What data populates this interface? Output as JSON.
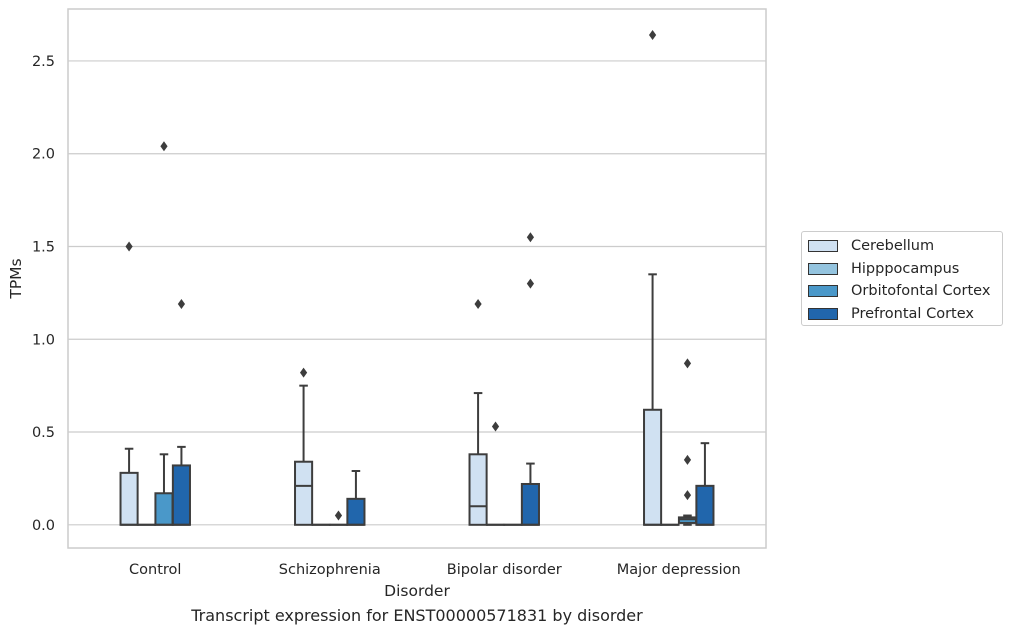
{
  "chart_data": {
    "type": "box",
    "title": "",
    "caption": "Transcript expression for ENST00000571831 by disorder",
    "xlabel": "Disorder",
    "ylabel": "TPMs",
    "categories": [
      "Control",
      "Schizophrenia",
      "Bipolar disorder",
      "Major depression"
    ],
    "ylim": [
      -0.125,
      2.78
    ],
    "yticks": [
      0.0,
      0.5,
      1.0,
      1.5,
      2.0,
      2.5
    ],
    "ytick_labels": [
      "0.0",
      "0.5",
      "1.0",
      "1.5",
      "2.0",
      "2.5"
    ],
    "grid": "horizontal",
    "legend_position": "right",
    "series": [
      {
        "name": "Cerebellum",
        "color": "#d0e1f2",
        "boxes": [
          {
            "q1": 0,
            "median": 0,
            "q3": 0.28,
            "whisker_low": 0,
            "whisker_high": 0.41,
            "outliers": [
              1.5
            ]
          },
          {
            "q1": 0,
            "median": 0.21,
            "q3": 0.34,
            "whisker_low": 0,
            "whisker_high": 0.75,
            "outliers": [
              0.82
            ]
          },
          {
            "q1": 0,
            "median": 0.1,
            "q3": 0.38,
            "whisker_low": 0,
            "whisker_high": 0.71,
            "outliers": [
              1.19
            ]
          },
          {
            "q1": 0,
            "median": 0,
            "q3": 0.62,
            "whisker_low": 0,
            "whisker_high": 1.35,
            "outliers": [
              2.64
            ]
          }
        ]
      },
      {
        "name": "Hipppocampus",
        "color": "#94c4df",
        "boxes": [
          {
            "q1": 0,
            "median": 0,
            "q3": 0,
            "whisker_low": 0,
            "whisker_high": 0,
            "outliers": []
          },
          {
            "q1": 0,
            "median": 0,
            "q3": 0,
            "whisker_low": 0,
            "whisker_high": 0,
            "outliers": []
          },
          {
            "q1": 0,
            "median": 0,
            "q3": 0,
            "whisker_low": 0,
            "whisker_high": 0,
            "outliers": [
              0.53
            ]
          },
          {
            "q1": 0,
            "median": 0,
            "q3": 0,
            "whisker_low": 0,
            "whisker_high": 0,
            "outliers": []
          }
        ]
      },
      {
        "name": "Orbitofontal Cortex",
        "color": "#4a98c9",
        "boxes": [
          {
            "q1": 0,
            "median": 0,
            "q3": 0.17,
            "whisker_low": 0,
            "whisker_high": 0.38,
            "outliers": [
              2.04
            ]
          },
          {
            "q1": 0,
            "median": 0,
            "q3": 0,
            "whisker_low": 0,
            "whisker_high": 0,
            "outliers": [
              0.05
            ]
          },
          {
            "q1": 0,
            "median": 0,
            "q3": 0,
            "whisker_low": 0,
            "whisker_high": 0,
            "outliers": []
          },
          {
            "q1": 0.01,
            "median": 0.03,
            "q3": 0.04,
            "whisker_low": 0,
            "whisker_high": 0.05,
            "outliers": [
              0.16,
              0.35,
              0.87
            ]
          }
        ]
      },
      {
        "name": "Prefrontal Cortex",
        "color": "#2166ac",
        "boxes": [
          {
            "q1": 0,
            "median": 0,
            "q3": 0.32,
            "whisker_low": 0,
            "whisker_high": 0.42,
            "outliers": [
              1.19
            ]
          },
          {
            "q1": 0,
            "median": 0,
            "q3": 0.14,
            "whisker_low": 0,
            "whisker_high": 0.29,
            "outliers": []
          },
          {
            "q1": 0,
            "median": 0,
            "q3": 0.22,
            "whisker_low": 0,
            "whisker_high": 0.33,
            "outliers": [
              1.3,
              1.55
            ]
          },
          {
            "q1": 0,
            "median": 0,
            "q3": 0.21,
            "whisker_low": 0,
            "whisker_high": 0.44,
            "outliers": []
          }
        ]
      }
    ]
  }
}
